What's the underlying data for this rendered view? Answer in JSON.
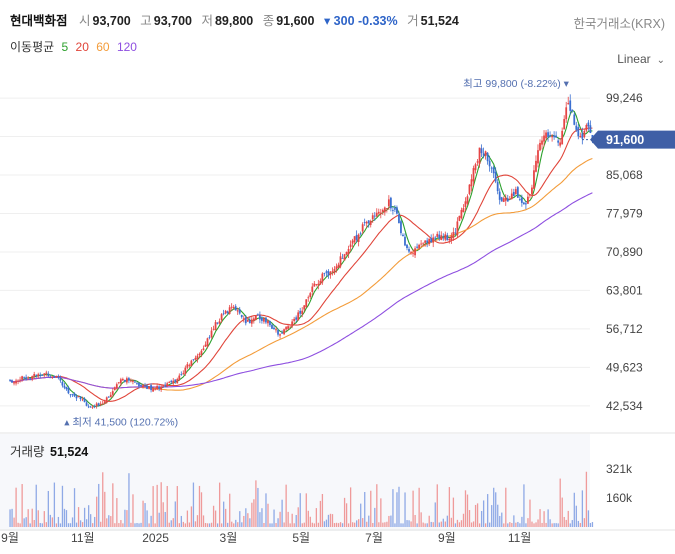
{
  "header": {
    "name": "현대백화점",
    "open_label": "시",
    "open": "93,700",
    "high_label": "고",
    "high": "93,700",
    "low_label": "저",
    "low": "89,800",
    "close_label": "종",
    "close": "91,600",
    "change": "▾ 300 -0.33%",
    "volume_label": "거",
    "volume": "51,524"
  },
  "exchange": "한국거래소(KRX)",
  "ma_legend": {
    "label": "이동평균",
    "items": [
      {
        "text": "5",
        "color": "#2ca02c"
      },
      {
        "text": "20",
        "color": "#e0453a"
      },
      {
        "text": "60",
        "color": "#f39c3a"
      },
      {
        "text": "120",
        "color": "#8e4fe0"
      }
    ]
  },
  "scale_mode": "Linear",
  "colors": {
    "up": "#e64545",
    "down": "#3b6fd1",
    "price_tag": "#3f5fa6",
    "annotation": "#5470b0"
  },
  "volume_panel": {
    "label": "거래량",
    "value": "51,524"
  },
  "chart_data": {
    "type": "candlestick",
    "y_ticks": [
      "99,246",
      "92,157",
      "85,068",
      "77,979",
      "70,890",
      "63,801",
      "56,712",
      "49,623",
      "42,534"
    ],
    "y_tick_values": [
      99246,
      92157,
      85068,
      77979,
      70890,
      63801,
      56712,
      49623,
      42534
    ],
    "ylim": [
      39000,
      103500
    ],
    "x_ticks": [
      "9월",
      "11월",
      "2025",
      "3월",
      "5월",
      "7월",
      "9월",
      "11월"
    ],
    "x_tick_months": [
      0,
      2,
      4,
      6,
      8,
      10,
      12,
      14
    ],
    "current_price": "91,600",
    "current_value": 91600,
    "max_annotation": {
      "label": "최고 99,800 (-8.22%) ▾",
      "month": 15.3,
      "value": 99800
    },
    "min_annotation": {
      "label": "▴ 최저 41,500 (120.72%)",
      "month": 1.6,
      "value": 41500
    },
    "closes": [
      [
        0,
        47000
      ],
      [
        0.5,
        48000
      ],
      [
        1.0,
        48500
      ],
      [
        1.3,
        47500
      ],
      [
        1.6,
        45000
      ],
      [
        1.9,
        44000
      ],
      [
        2.2,
        42000
      ],
      [
        2.5,
        43000
      ],
      [
        2.8,
        45000
      ],
      [
        3.1,
        47500
      ],
      [
        3.5,
        46500
      ],
      [
        3.8,
        45800
      ],
      [
        4.2,
        46000
      ],
      [
        4.6,
        47500
      ],
      [
        4.9,
        50000
      ],
      [
        5.3,
        53000
      ],
      [
        5.6,
        57000
      ],
      [
        5.9,
        60000
      ],
      [
        6.2,
        60500
      ],
      [
        6.5,
        58000
      ],
      [
        6.8,
        59000
      ],
      [
        7.1,
        58000
      ],
      [
        7.4,
        55500
      ],
      [
        7.7,
        57500
      ],
      [
        8.0,
        60000
      ],
      [
        8.3,
        64000
      ],
      [
        8.6,
        66500
      ],
      [
        8.9,
        67500
      ],
      [
        9.2,
        71000
      ],
      [
        9.5,
        73500
      ],
      [
        9.8,
        76500
      ],
      [
        10.1,
        77500
      ],
      [
        10.4,
        80000
      ],
      [
        10.6,
        78000
      ],
      [
        10.8,
        73500
      ],
      [
        11.0,
        70500
      ],
      [
        11.2,
        71500
      ],
      [
        11.5,
        73000
      ],
      [
        11.8,
        74000
      ],
      [
        12.1,
        73000
      ],
      [
        12.3,
        76000
      ],
      [
        12.5,
        80000
      ],
      [
        12.7,
        85000
      ],
      [
        12.9,
        89500
      ],
      [
        13.1,
        88500
      ],
      [
        13.3,
        84500
      ],
      [
        13.5,
        80000
      ],
      [
        13.7,
        81000
      ],
      [
        13.9,
        82000
      ],
      [
        14.1,
        79500
      ],
      [
        14.3,
        81500
      ],
      [
        14.5,
        90000
      ],
      [
        14.7,
        93500
      ],
      [
        14.9,
        92000
      ],
      [
        15.1,
        91000
      ],
      [
        15.3,
        98500
      ],
      [
        15.5,
        95000
      ],
      [
        15.7,
        91500
      ],
      [
        15.85,
        94000
      ],
      [
        16.0,
        91600
      ]
    ],
    "volume_ticks": [
      "321k",
      "160k"
    ],
    "volume_tick_values": [
      321000,
      160000
    ],
    "volume_max": 400000
  }
}
